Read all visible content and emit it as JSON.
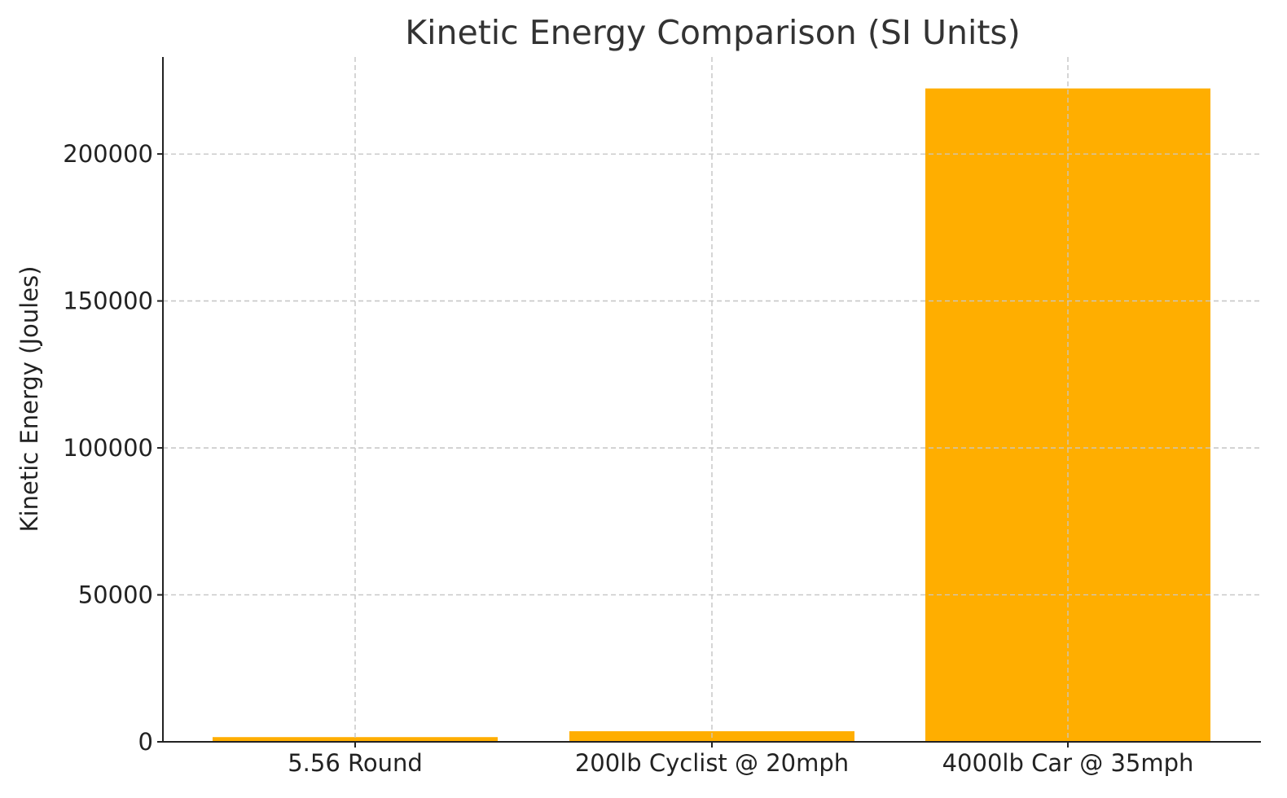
{
  "chart_data": {
    "type": "bar",
    "title": "Kinetic Energy Comparison (SI Units)",
    "xlabel": "",
    "ylabel": "Kinetic Energy (Joules)",
    "categories": [
      "5.56 Round",
      "200lb Cyclist @ 20mph",
      "4000lb Car @ 35mph"
    ],
    "values": [
      1600,
      3600,
      222300
    ],
    "ylim": [
      0,
      233000
    ],
    "yticks": [
      0,
      50000,
      100000,
      150000,
      200000
    ],
    "ytick_labels": [
      "0",
      "50000",
      "100000",
      "150000",
      "200000"
    ],
    "grid": true,
    "colors": {
      "bar": "#FFAE00",
      "grid": "#c8c8c8",
      "axis": "#222222",
      "text": "#222222"
    }
  }
}
